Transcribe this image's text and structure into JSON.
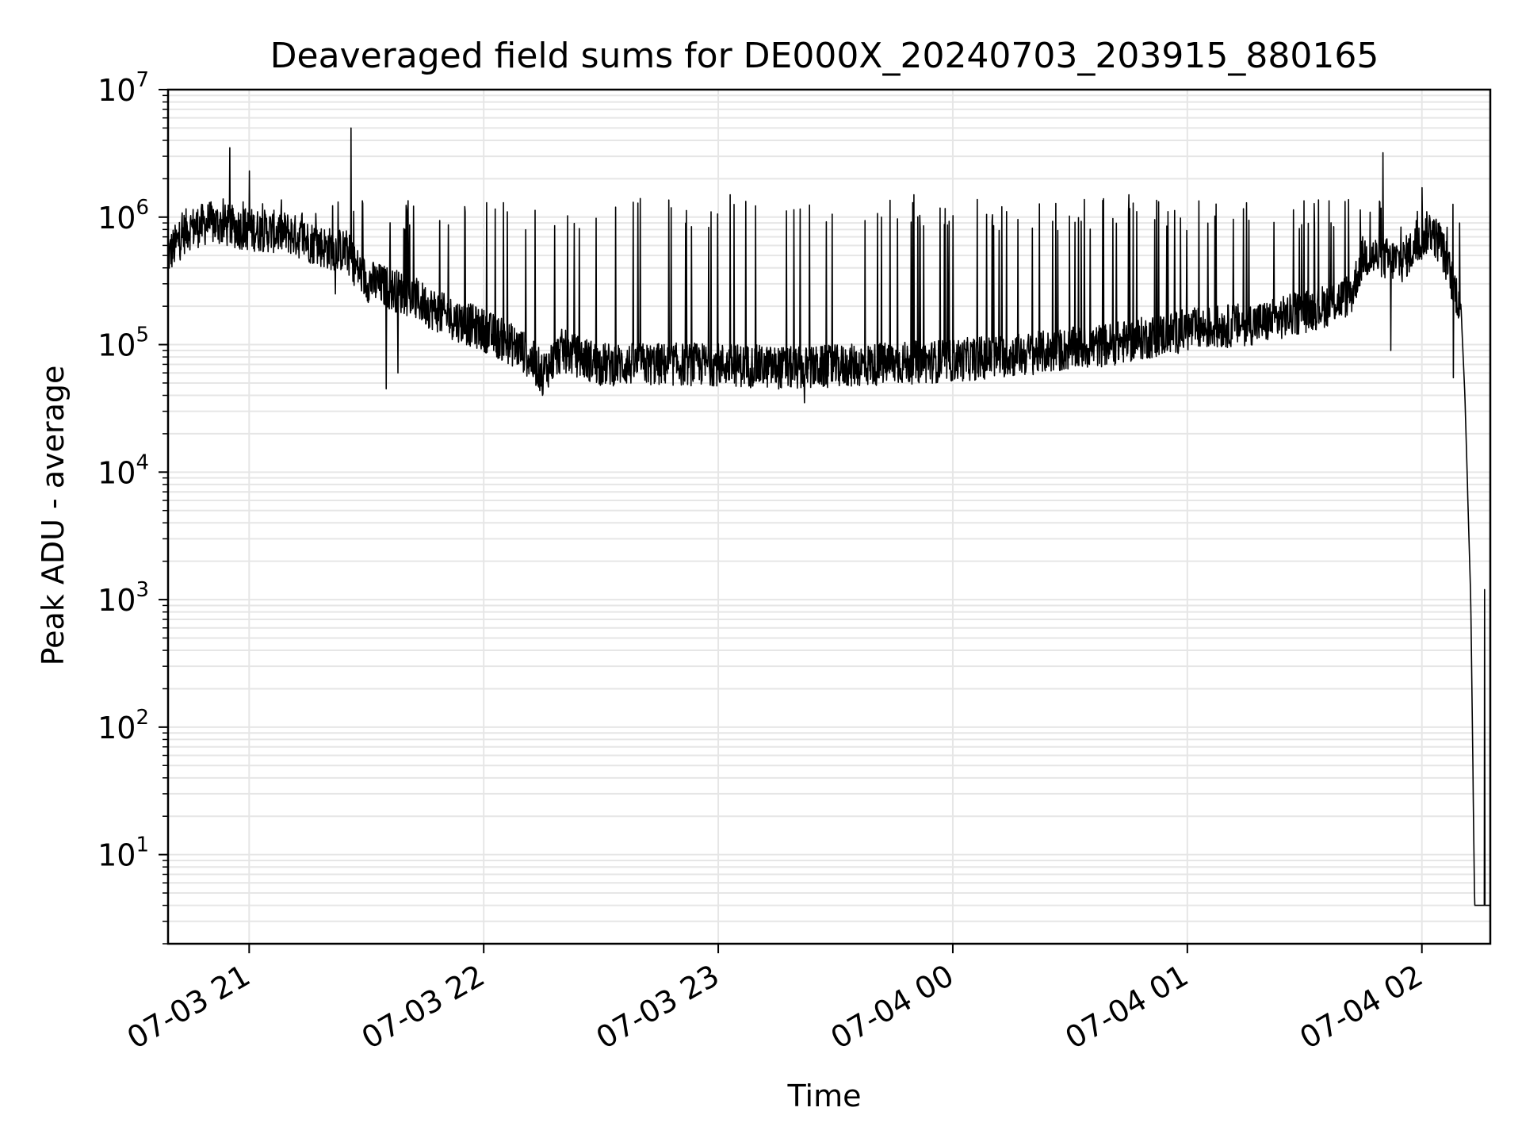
{
  "chart_data": {
    "type": "line",
    "title": "Deaveraged field sums for DE000X_20240703_203915_880165",
    "xlabel": "Time",
    "ylabel": "Peak ADU - average",
    "yscale": "log",
    "ylim": [
      2,
      10000000
    ],
    "xlim": [
      "2024-07-03 20:39:15",
      "2024-07-04 02:17:30"
    ],
    "grid": true,
    "line_color": "#000000",
    "grid_color": "#e6e6e6",
    "x_ticks": [
      {
        "x": "2024-07-03 21:00",
        "label": "07-03 21"
      },
      {
        "x": "2024-07-03 22:00",
        "label": "07-03 22"
      },
      {
        "x": "2024-07-03 23:00",
        "label": "07-03 23"
      },
      {
        "x": "2024-07-04 00:00",
        "label": "07-04 00"
      },
      {
        "x": "2024-07-04 01:00",
        "label": "07-04 01"
      },
      {
        "x": "2024-07-04 02:00",
        "label": "07-04 02"
      }
    ],
    "y_ticks": [
      {
        "value": 10,
        "base": "10",
        "exp": "1"
      },
      {
        "value": 100,
        "base": "10",
        "exp": "2"
      },
      {
        "value": 1000,
        "base": "10",
        "exp": "3"
      },
      {
        "value": 10000,
        "base": "10",
        "exp": "4"
      },
      {
        "value": 100000,
        "base": "10",
        "exp": "5"
      },
      {
        "value": 1000000,
        "base": "10",
        "exp": "6"
      },
      {
        "value": 10000000,
        "base": "10",
        "exp": "7"
      }
    ],
    "series": [
      {
        "baseline": [
          [
            "2024-07-03 20:39:15",
            500000
          ],
          [
            "2024-07-03 20:44:00",
            800000
          ],
          [
            "2024-07-03 20:50:00",
            900000
          ],
          [
            "2024-07-03 21:00:00",
            800000
          ],
          [
            "2024-07-03 21:10:00",
            750000
          ],
          [
            "2024-07-03 21:15:00",
            650000
          ],
          [
            "2024-07-03 21:20:00",
            570000
          ],
          [
            "2024-07-03 21:25:00",
            540000
          ],
          [
            "2024-07-03 21:27:00",
            420000
          ],
          [
            "2024-07-03 21:30:00",
            320000
          ],
          [
            "2024-07-03 21:40:00",
            250000
          ],
          [
            "2024-07-03 21:50:00",
            170000
          ],
          [
            "2024-07-03 22:00:00",
            130000
          ],
          [
            "2024-07-03 22:10:00",
            90000
          ],
          [
            "2024-07-03 22:15:00",
            60000
          ],
          [
            "2024-07-03 22:20:00",
            90000
          ],
          [
            "2024-07-03 22:30:00",
            70000
          ],
          [
            "2024-07-03 23:00:00",
            70000
          ],
          [
            "2024-07-03 23:20:00",
            65000
          ],
          [
            "2024-07-03 23:40:00",
            70000
          ],
          [
            "2024-07-04 00:00:00",
            75000
          ],
          [
            "2024-07-04 00:20:00",
            85000
          ],
          [
            "2024-07-04 00:40:00",
            100000
          ],
          [
            "2024-07-04 01:00:00",
            130000
          ],
          [
            "2024-07-04 01:20:00",
            150000
          ],
          [
            "2024-07-04 01:35:00",
            200000
          ],
          [
            "2024-07-04 01:42:00",
            250000
          ],
          [
            "2024-07-04 01:45:00",
            500000
          ],
          [
            "2024-07-04 01:55:00",
            450000
          ],
          [
            "2024-07-04 02:02:00",
            800000
          ],
          [
            "2024-07-04 02:05:00",
            600000
          ],
          [
            "2024-07-04 02:08:00",
            300000
          ],
          [
            "2024-07-04 02:10:00",
            200000
          ],
          [
            "2024-07-04 02:11:00",
            40000
          ],
          [
            "2024-07-04 02:12:30",
            1000
          ],
          [
            "2024-07-04 02:13:30",
            4
          ],
          [
            "2024-07-04 02:17:30",
            4
          ]
        ],
        "spikes": [
          [
            "2024-07-03 20:55:00",
            3500000
          ],
          [
            "2024-07-03 21:00:00",
            2300000
          ],
          [
            "2024-07-03 21:26:00",
            5000000
          ],
          [
            "2024-07-03 21:22:00",
            250000
          ],
          [
            "2024-07-03 21:35:00",
            45000
          ],
          [
            "2024-07-03 21:38:00",
            60000
          ],
          [
            "2024-07-03 22:05:00",
            1300000
          ],
          [
            "2024-07-03 22:15:00",
            40000
          ],
          [
            "2024-07-03 22:40:00",
            1400000
          ],
          [
            "2024-07-03 23:03:00",
            1500000
          ],
          [
            "2024-07-03 23:22:00",
            35000
          ],
          [
            "2024-07-03 23:50:00",
            1500000
          ],
          [
            "2024-07-04 00:45:00",
            1500000
          ],
          [
            "2024-07-04 01:50:00",
            3200000
          ],
          [
            "2024-07-04 01:52:00",
            90000
          ],
          [
            "2024-07-04 02:00:00",
            1700000
          ],
          [
            "2024-07-04 02:08:00",
            55000
          ],
          [
            "2024-07-04 02:16:00",
            1200
          ]
        ]
      }
    ]
  }
}
